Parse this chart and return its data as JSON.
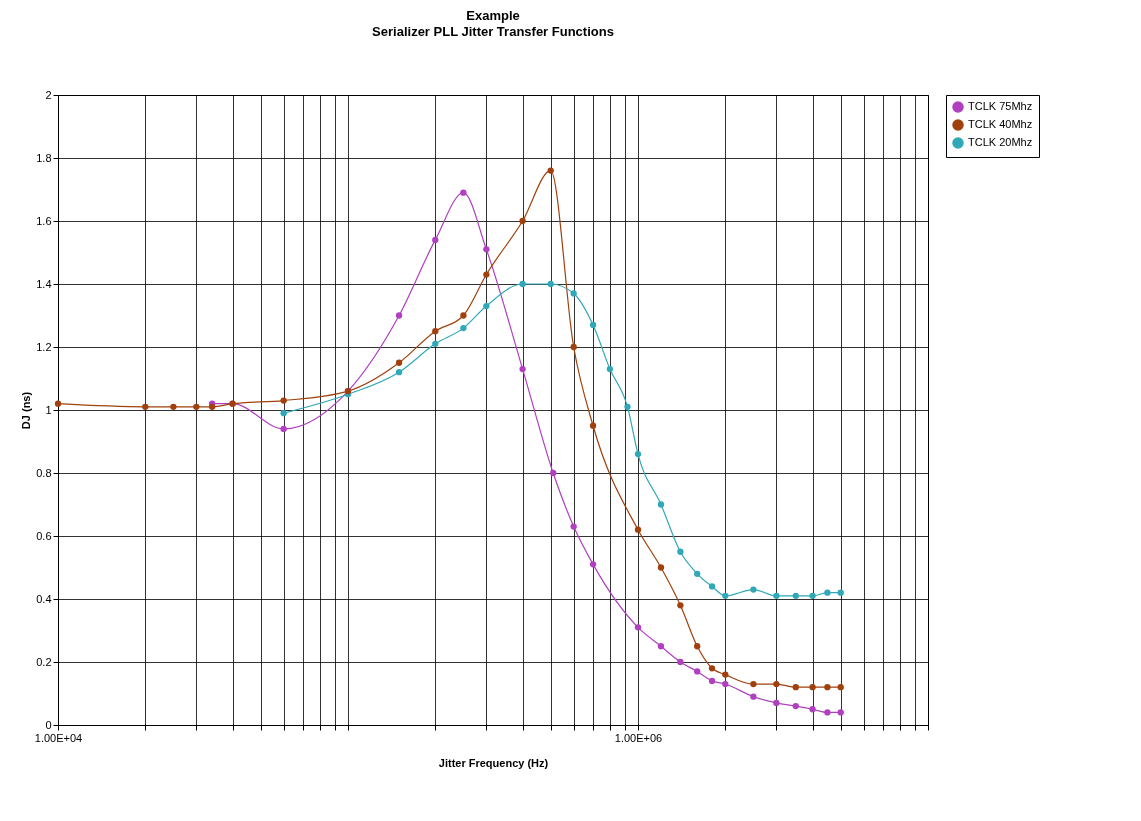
{
  "chart_data": {
    "type": "line",
    "title": "Example",
    "subtitle": "Serializer PLL Jitter Transfer Functions",
    "xlabel": "Jitter Frequency (Hz)",
    "ylabel": "DJ (ns)",
    "log": "x",
    "grid": true,
    "legend": "right",
    "marker": "circle",
    "line_style": "solid",
    "xlim": [
      10000,
      10000000
    ],
    "xticks": [
      {
        "value": 10000,
        "label": "1.00E+04"
      },
      {
        "value": 20000,
        "label": null
      },
      {
        "value": 30000,
        "label": null
      },
      {
        "value": 40000,
        "label": null
      },
      {
        "value": 50000,
        "label": null
      },
      {
        "value": 60000,
        "label": null
      },
      {
        "value": 70000,
        "label": null
      },
      {
        "value": 80000,
        "label": null
      },
      {
        "value": 90000,
        "label": null
      },
      {
        "value": 100000,
        "label": null
      },
      {
        "value": 200000,
        "label": null
      },
      {
        "value": 300000,
        "label": null
      },
      {
        "value": 400000,
        "label": null
      },
      {
        "value": 500000,
        "label": null
      },
      {
        "value": 600000,
        "label": null
      },
      {
        "value": 700000,
        "label": null
      },
      {
        "value": 800000,
        "label": null
      },
      {
        "value": 900000,
        "label": null
      },
      {
        "value": 1000000,
        "label": "1.00E+06"
      },
      {
        "value": 2000000,
        "label": null
      },
      {
        "value": 3000000,
        "label": null
      },
      {
        "value": 4000000,
        "label": null
      },
      {
        "value": 5000000,
        "label": null
      },
      {
        "value": 6000000,
        "label": null
      },
      {
        "value": 7000000,
        "label": null
      },
      {
        "value": 8000000,
        "label": null
      },
      {
        "value": 9000000,
        "label": null
      },
      {
        "value": 10000000,
        "label": null
      }
    ],
    "ylim": [
      0,
      2
    ],
    "yticks": [
      0,
      0.2,
      0.4,
      0.6,
      0.8,
      1,
      1.2,
      1.4,
      1.6,
      1.8,
      2
    ],
    "series": [
      {
        "name": "TCLK 75Mhz",
        "color": "#b040c0",
        "x": [
          34000,
          40000,
          60000,
          100000,
          150000,
          200000,
          250000,
          300000,
          400000,
          510000,
          600000,
          700000,
          1000000,
          1200000,
          1400000,
          1600000,
          1800000,
          2000000,
          2500000,
          3000000,
          3500000,
          4000000,
          4500000,
          5000000
        ],
        "values": [
          1.02,
          1.02,
          0.94,
          1.06,
          1.3,
          1.54,
          1.69,
          1.51,
          1.13,
          0.8,
          0.63,
          0.51,
          0.31,
          0.25,
          0.2,
          0.17,
          0.14,
          0.13,
          0.09,
          0.07,
          0.06,
          0.05,
          0.04,
          0.04
        ]
      },
      {
        "name": "TCLK 40Mhz",
        "color": "#a0400c",
        "x": [
          10000,
          20000,
          25000,
          30000,
          34000,
          40000,
          60000,
          100000,
          150000,
          200000,
          250000,
          300000,
          400000,
          500000,
          600000,
          700000,
          1000000,
          1200000,
          1400000,
          1600000,
          1800000,
          2000000,
          2500000,
          3000000,
          3500000,
          4000000,
          4500000,
          5000000
        ],
        "values": [
          1.02,
          1.01,
          1.01,
          1.01,
          1.01,
          1.02,
          1.03,
          1.06,
          1.15,
          1.25,
          1.3,
          1.43,
          1.6,
          1.76,
          1.2,
          0.95,
          0.62,
          0.5,
          0.38,
          0.25,
          0.18,
          0.16,
          0.13,
          0.13,
          0.12,
          0.12,
          0.12,
          0.12
        ]
      },
      {
        "name": "TCLK 20Mhz",
        "color": "#30a8b8",
        "x": [
          60000,
          100000,
          150000,
          200000,
          250000,
          300000,
          400000,
          500000,
          600000,
          700000,
          800000,
          920000,
          1000000,
          1200000,
          1400000,
          1600000,
          1800000,
          2000000,
          2500000,
          3000000,
          3500000,
          4000000,
          4500000,
          5000000
        ],
        "values": [
          0.99,
          1.05,
          1.12,
          1.21,
          1.26,
          1.33,
          1.4,
          1.4,
          1.37,
          1.27,
          1.13,
          1.01,
          0.86,
          0.7,
          0.55,
          0.48,
          0.44,
          0.41,
          0.43,
          0.41,
          0.41,
          0.41,
          0.42,
          0.42
        ]
      }
    ]
  }
}
